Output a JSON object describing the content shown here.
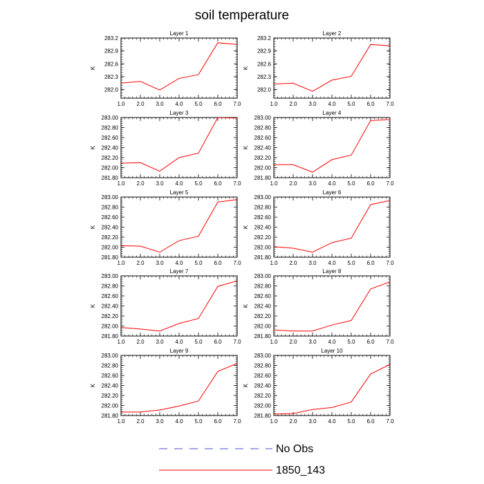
{
  "title": "soil temperature",
  "legend": [
    {
      "label": "No Obs",
      "color": "#4a4acc",
      "dash": true
    },
    {
      "label": "1850_143",
      "color": "#ff0000",
      "dash": false
    }
  ],
  "chart_data": [
    {
      "type": "line",
      "title": "Layer 1",
      "ylabel": "K",
      "x": [
        1,
        2,
        3,
        4,
        5,
        6,
        7
      ],
      "xlim": [
        1.0,
        7.0
      ],
      "ylim": [
        281.8,
        283.2
      ],
      "yticks": [
        282.0,
        282.3,
        282.6,
        282.9,
        283.2
      ],
      "ytick_labels": [
        "282.0",
        "282.3",
        "282.6",
        "282.9",
        "283.2"
      ],
      "series": [
        {
          "name": "1850_143",
          "values": [
            282.15,
            282.19,
            281.99,
            282.26,
            282.35,
            283.09,
            283.05
          ]
        }
      ]
    },
    {
      "type": "line",
      "title": "Layer 2",
      "ylabel": "K",
      "x": [
        1,
        2,
        3,
        4,
        5,
        6,
        7
      ],
      "xlim": [
        1.0,
        7.0
      ],
      "ylim": [
        281.8,
        283.2
      ],
      "yticks": [
        282.0,
        282.3,
        282.6,
        282.9,
        283.2
      ],
      "ytick_labels": [
        "282.0",
        "282.3",
        "282.6",
        "282.9",
        "283.2"
      ],
      "series": [
        {
          "name": "1850_143",
          "values": [
            282.13,
            282.15,
            281.96,
            282.22,
            282.31,
            283.05,
            283.02
          ]
        }
      ]
    },
    {
      "type": "line",
      "title": "Layer 3",
      "ylabel": "K",
      "x": [
        1,
        2,
        3,
        4,
        5,
        6,
        7
      ],
      "xlim": [
        1.0,
        7.0
      ],
      "ylim": [
        281.8,
        283.0
      ],
      "yticks": [
        281.8,
        282.0,
        282.2,
        282.4,
        282.6,
        282.8,
        283.0
      ],
      "ytick_labels": [
        "281.80",
        "282.00",
        "282.20",
        "282.40",
        "282.60",
        "282.80",
        "283.00"
      ],
      "series": [
        {
          "name": "1850_143",
          "values": [
            282.09,
            282.1,
            281.93,
            282.2,
            282.29,
            283.0,
            282.99
          ]
        }
      ]
    },
    {
      "type": "line",
      "title": "Layer 4",
      "ylabel": "K",
      "x": [
        1,
        2,
        3,
        4,
        5,
        6,
        7
      ],
      "xlim": [
        1.0,
        7.0
      ],
      "ylim": [
        281.8,
        283.0
      ],
      "yticks": [
        281.8,
        282.0,
        282.2,
        282.4,
        282.6,
        282.8,
        283.0
      ],
      "ytick_labels": [
        "281.80",
        "282.00",
        "282.20",
        "282.40",
        "282.60",
        "282.80",
        "283.00"
      ],
      "series": [
        {
          "name": "1850_143",
          "values": [
            282.06,
            282.06,
            281.91,
            282.16,
            282.25,
            282.94,
            282.96
          ]
        }
      ]
    },
    {
      "type": "line",
      "title": "Layer 5",
      "ylabel": "K",
      "x": [
        1,
        2,
        3,
        4,
        5,
        6,
        7
      ],
      "xlim": [
        1.0,
        7.0
      ],
      "ylim": [
        281.8,
        283.0
      ],
      "yticks": [
        281.8,
        282.0,
        282.2,
        282.4,
        282.6,
        282.8,
        283.0
      ],
      "ytick_labels": [
        "281.80",
        "282.00",
        "282.20",
        "282.40",
        "282.60",
        "282.80",
        "283.00"
      ],
      "series": [
        {
          "name": "1850_143",
          "values": [
            282.03,
            282.02,
            281.9,
            282.13,
            282.22,
            282.9,
            282.95
          ]
        }
      ]
    },
    {
      "type": "line",
      "title": "Layer 6",
      "ylabel": "K",
      "x": [
        1,
        2,
        3,
        4,
        5,
        6,
        7
      ],
      "xlim": [
        1.0,
        7.0
      ],
      "ylim": [
        281.8,
        283.0
      ],
      "yticks": [
        281.8,
        282.0,
        282.2,
        282.4,
        282.6,
        282.8,
        283.0
      ],
      "ytick_labels": [
        "281.80",
        "282.00",
        "282.20",
        "282.40",
        "282.60",
        "282.80",
        "283.00"
      ],
      "series": [
        {
          "name": "1850_143",
          "values": [
            282.01,
            281.98,
            281.9,
            282.09,
            282.18,
            282.85,
            282.93
          ]
        }
      ]
    },
    {
      "type": "line",
      "title": "Layer 7",
      "ylabel": "K",
      "x": [
        1,
        2,
        3,
        4,
        5,
        6,
        7
      ],
      "xlim": [
        1.0,
        7.0
      ],
      "ylim": [
        281.8,
        283.0
      ],
      "yticks": [
        281.8,
        282.0,
        282.2,
        282.4,
        282.6,
        282.8,
        283.0
      ],
      "ytick_labels": [
        "281.80",
        "282.00",
        "282.20",
        "282.40",
        "282.60",
        "282.80",
        "283.00"
      ],
      "series": [
        {
          "name": "1850_143",
          "values": [
            281.97,
            281.94,
            281.9,
            282.05,
            282.15,
            282.79,
            282.9
          ]
        }
      ]
    },
    {
      "type": "line",
      "title": "Layer 8",
      "ylabel": "K",
      "x": [
        1,
        2,
        3,
        4,
        5,
        6,
        7
      ],
      "xlim": [
        1.0,
        7.0
      ],
      "ylim": [
        281.8,
        283.0
      ],
      "yticks": [
        281.8,
        282.0,
        282.2,
        282.4,
        282.6,
        282.8,
        283.0
      ],
      "ytick_labels": [
        "281.80",
        "282.00",
        "282.20",
        "282.40",
        "282.60",
        "282.80",
        "283.00"
      ],
      "series": [
        {
          "name": "1850_143",
          "values": [
            281.92,
            281.9,
            281.9,
            282.02,
            282.11,
            282.74,
            282.88
          ]
        }
      ]
    },
    {
      "type": "line",
      "title": "Layer 9",
      "ylabel": "K",
      "x": [
        1,
        2,
        3,
        4,
        5,
        6,
        7
      ],
      "xlim": [
        1.0,
        7.0
      ],
      "ylim": [
        281.8,
        283.0
      ],
      "yticks": [
        281.8,
        282.0,
        282.2,
        282.4,
        282.6,
        282.8,
        283.0
      ],
      "ytick_labels": [
        "281.80",
        "282.00",
        "282.20",
        "282.40",
        "282.60",
        "282.80",
        "283.00"
      ],
      "series": [
        {
          "name": "1850_143",
          "values": [
            281.87,
            281.87,
            281.91,
            281.99,
            282.09,
            282.68,
            282.84
          ]
        }
      ]
    },
    {
      "type": "line",
      "title": "Layer 10",
      "ylabel": "K",
      "x": [
        1,
        2,
        3,
        4,
        5,
        6,
        7
      ],
      "xlim": [
        1.0,
        7.0
      ],
      "ylim": [
        281.8,
        283.0
      ],
      "yticks": [
        281.8,
        282.0,
        282.2,
        282.4,
        282.6,
        282.8,
        283.0
      ],
      "ytick_labels": [
        "281.80",
        "282.00",
        "282.20",
        "282.40",
        "282.60",
        "282.80",
        "283.00"
      ],
      "series": [
        {
          "name": "1850_143",
          "values": [
            281.83,
            281.84,
            281.92,
            281.96,
            282.07,
            282.63,
            282.82
          ]
        }
      ]
    }
  ],
  "xticks": [
    1,
    2,
    3,
    4,
    5,
    6,
    7
  ],
  "xtick_labels": [
    "1.0",
    "2.0",
    "3.0",
    "4.0",
    "5.0",
    "6.0",
    "7.0"
  ]
}
